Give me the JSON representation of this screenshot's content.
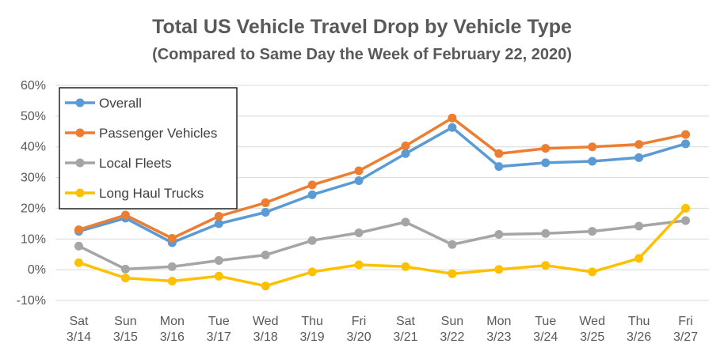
{
  "chart_data": {
    "type": "line",
    "title": "Total US Vehicle Travel Drop by Vehicle Type",
    "subtitle": "(Compared to Same Day the Week of February 22, 2020)",
    "xlabel": "",
    "ylabel": "",
    "categories": [
      [
        "Sat",
        "3/14"
      ],
      [
        "Sun",
        "3/15"
      ],
      [
        "Mon",
        "3/16"
      ],
      [
        "Tue",
        "3/17"
      ],
      [
        "Wed",
        "3/18"
      ],
      [
        "Thu",
        "3/19"
      ],
      [
        "Fri",
        "3/20"
      ],
      [
        "Sat",
        "3/21"
      ],
      [
        "Sun",
        "3/22"
      ],
      [
        "Mon",
        "3/23"
      ],
      [
        "Tue",
        "3/24"
      ],
      [
        "Wed",
        "3/25"
      ],
      [
        "Thu",
        "3/26"
      ],
      [
        "Fri",
        "3/27"
      ]
    ],
    "ylim": [
      -10,
      60
    ],
    "yticks": [
      -10,
      0,
      10,
      20,
      30,
      40,
      50,
      60
    ],
    "ytick_format": "percent",
    "grid": true,
    "legend_position": "top-left",
    "series": [
      {
        "name": "Overall",
        "color": "#5B9BD5",
        "values": [
          12.5,
          16.8,
          8.8,
          15.0,
          18.7,
          24.4,
          29.0,
          37.8,
          46.3,
          33.6,
          34.8,
          35.3,
          36.5,
          41.0
        ]
      },
      {
        "name": "Passenger Vehicles",
        "color": "#ED7D31",
        "values": [
          13.0,
          17.8,
          10.2,
          17.4,
          21.8,
          27.6,
          32.2,
          40.3,
          49.4,
          37.8,
          39.5,
          40.0,
          40.8,
          44.0
        ]
      },
      {
        "name": "Local Fleets",
        "color": "#A5A5A5",
        "values": [
          7.7,
          0.2,
          1.0,
          3.0,
          4.8,
          9.5,
          12.0,
          15.5,
          8.2,
          11.5,
          11.8,
          12.5,
          14.2,
          16.0
        ]
      },
      {
        "name": "Long Haul Trucks",
        "color": "#FFC000",
        "values": [
          2.3,
          -2.7,
          -3.7,
          -2.1,
          -5.3,
          -0.7,
          1.6,
          1.0,
          -1.3,
          0.1,
          1.4,
          -0.7,
          3.7,
          20.0
        ]
      }
    ]
  }
}
